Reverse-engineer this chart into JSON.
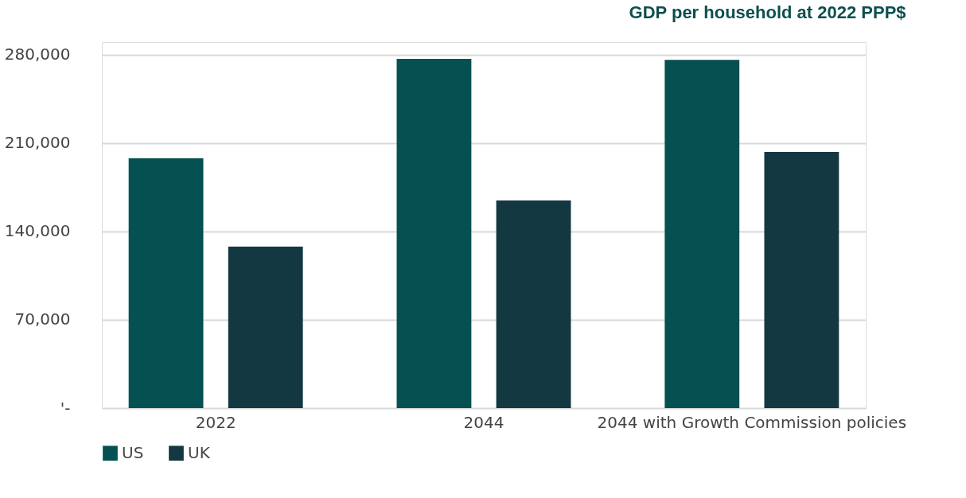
{
  "chart_data": {
    "type": "bar",
    "title": "GDP per household at 2022 PPP$",
    "categories": [
      "2022",
      "2044",
      "2044 with Growth Commission policies"
    ],
    "series": [
      {
        "name": "US",
        "color": "#055050",
        "values": [
          198000,
          276800,
          276000
        ]
      },
      {
        "name": "UK",
        "color": "#133841",
        "values": [
          128000,
          164600,
          203000
        ]
      }
    ],
    "ylim": [
      0,
      290000
    ],
    "yticks": [
      {
        "value": 0,
        "label": "'-"
      },
      {
        "value": 70000,
        "label": "70,000"
      },
      {
        "value": 140000,
        "label": "140,000"
      },
      {
        "value": 210000,
        "label": "210,000"
      },
      {
        "value": 280000,
        "label": "280,000"
      }
    ],
    "grid": "y",
    "legend": "bottom"
  }
}
